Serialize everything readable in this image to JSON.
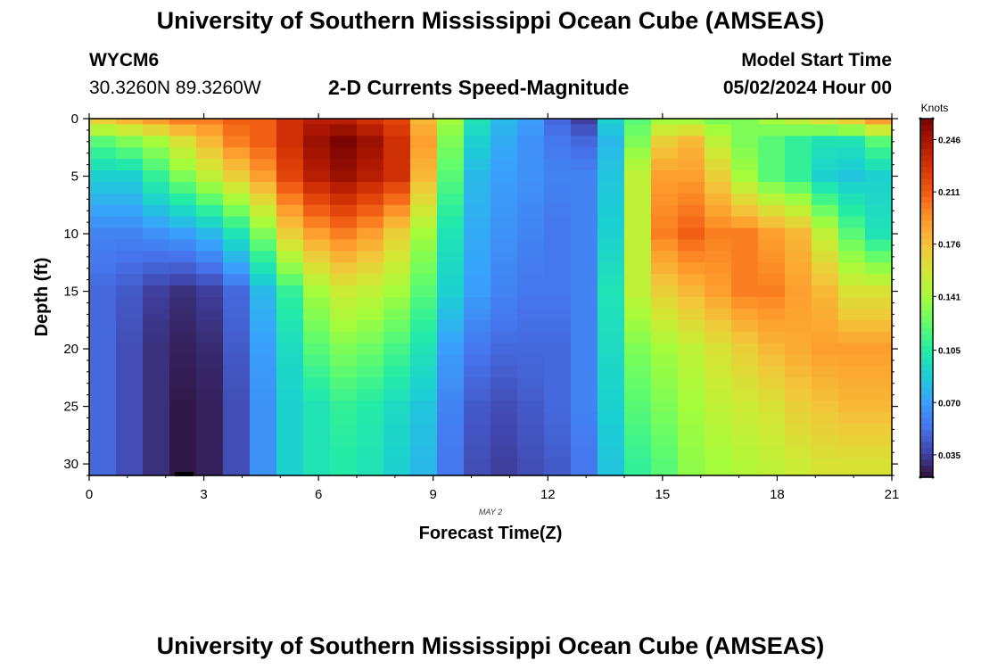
{
  "page": {
    "title_top": "University of Southern Mississippi Ocean Cube (AMSEAS)",
    "title_bottom": "University of Southern Mississippi Ocean Cube (AMSEAS)",
    "station": "WYCM6",
    "coords": "30.3260N  89.3260W",
    "model_start_label": "Model Start Time",
    "model_start_value": "05/02/2024 Hour 00",
    "plot_title": "2-D Currents Speed-Magnitude",
    "date_label": "MAY 2"
  },
  "colors": {
    "colormap": [
      "#30123b",
      "#4145ab",
      "#4675ed",
      "#39a2fc",
      "#1bcfd4",
      "#24eca6",
      "#61fc6c",
      "#a4fc3b",
      "#d1e834",
      "#f3c63a",
      "#fe9b2d",
      "#f36315",
      "#d93806",
      "#b11901",
      "#7a0402"
    ]
  },
  "chart_data": {
    "type": "heatmap",
    "title": "2-D Currents Speed-Magnitude",
    "xlabel": "Forecast Time(Z)",
    "ylabel": "Depth (ft)",
    "xlim": [
      0,
      21
    ],
    "ylim": [
      31,
      0
    ],
    "x_ticks": [
      0,
      3,
      6,
      9,
      12,
      15,
      18,
      21
    ],
    "y_ticks": [
      0,
      5,
      10,
      15,
      20,
      25,
      30
    ],
    "x_tick_labels": [
      "0",
      "3",
      "6",
      "9",
      "12",
      "15",
      "18",
      "21"
    ],
    "y_tick_labels": [
      "0",
      "5",
      "10",
      "15",
      "20",
      "25",
      "30"
    ],
    "colorbar": {
      "label": "Knots",
      "min": 0.02,
      "max": 0.26,
      "ticks": [
        0.035,
        0.07,
        0.105,
        0.141,
        0.176,
        0.211,
        0.246
      ],
      "tick_labels": [
        "0.035",
        "0.070",
        "0.105",
        "0.141",
        "0.176",
        "0.211",
        "0.246"
      ]
    },
    "times": [
      0.0,
      0.7,
      1.4,
      2.1,
      2.8,
      3.5,
      4.2,
      4.9,
      5.6,
      6.3,
      7.0,
      7.7,
      8.4,
      9.1,
      9.8,
      10.5,
      11.2,
      11.9,
      12.6,
      13.3,
      14.0,
      14.7,
      15.4,
      16.1,
      16.8,
      17.5,
      18.2,
      18.9,
      19.6,
      20.3
    ],
    "depths": [
      0,
      1,
      2,
      3,
      4,
      5,
      6,
      7,
      8,
      9,
      10,
      11,
      12,
      13,
      14,
      15,
      16,
      17,
      18,
      19,
      20,
      21,
      22,
      23,
      24,
      25,
      26,
      27,
      28,
      29,
      30
    ],
    "profiles": {
      "depth_knots": [
        0,
        2,
        5,
        10,
        15,
        20,
        25,
        30
      ],
      "times": [
        0.0,
        0.7,
        1.4,
        2.1,
        2.8,
        3.5,
        4.2,
        4.9,
        5.6,
        6.3,
        7.0,
        7.7,
        8.4,
        9.1,
        9.8,
        10.5,
        11.2,
        11.9,
        12.6,
        13.3,
        14.0,
        14.7,
        15.4,
        16.1,
        16.8,
        17.5,
        18.2,
        18.9,
        19.6,
        20.3
      ],
      "speed_knots": [
        [
          0.17,
          0.12,
          0.09,
          0.06,
          0.05,
          0.05,
          0.05,
          0.05
        ],
        [
          0.18,
          0.13,
          0.09,
          0.06,
          0.045,
          0.04,
          0.04,
          0.04
        ],
        [
          0.19,
          0.14,
          0.11,
          0.065,
          0.035,
          0.03,
          0.03,
          0.03
        ],
        [
          0.2,
          0.16,
          0.13,
          0.07,
          0.03,
          0.025,
          0.022,
          0.022
        ],
        [
          0.2,
          0.18,
          0.15,
          0.08,
          0.035,
          0.028,
          0.025,
          0.025
        ],
        [
          0.21,
          0.2,
          0.17,
          0.1,
          0.05,
          0.045,
          0.04,
          0.04
        ],
        [
          0.21,
          0.21,
          0.19,
          0.13,
          0.08,
          0.07,
          0.065,
          0.065
        ],
        [
          0.23,
          0.23,
          0.22,
          0.17,
          0.11,
          0.095,
          0.09,
          0.09
        ],
        [
          0.24,
          0.25,
          0.24,
          0.19,
          0.14,
          0.12,
          0.1,
          0.1
        ],
        [
          0.24,
          0.26,
          0.25,
          0.2,
          0.155,
          0.13,
          0.11,
          0.105
        ],
        [
          0.23,
          0.25,
          0.24,
          0.19,
          0.15,
          0.125,
          0.105,
          0.1
        ],
        [
          0.22,
          0.23,
          0.23,
          0.17,
          0.14,
          0.115,
          0.095,
          0.09
        ],
        [
          0.18,
          0.19,
          0.18,
          0.14,
          0.12,
          0.1,
          0.085,
          0.08
        ],
        [
          0.14,
          0.13,
          0.12,
          0.1,
          0.09,
          0.07,
          0.06,
          0.055
        ],
        [
          0.1,
          0.09,
          0.08,
          0.075,
          0.07,
          0.055,
          0.045,
          0.04
        ],
        [
          0.08,
          0.075,
          0.07,
          0.065,
          0.06,
          0.05,
          0.04,
          0.035
        ],
        [
          0.07,
          0.065,
          0.065,
          0.06,
          0.055,
          0.05,
          0.045,
          0.04
        ],
        [
          0.05,
          0.055,
          0.06,
          0.055,
          0.055,
          0.05,
          0.05,
          0.045
        ],
        [
          0.035,
          0.05,
          0.06,
          0.06,
          0.06,
          0.06,
          0.06,
          0.055
        ],
        [
          0.09,
          0.08,
          0.085,
          0.09,
          0.1,
          0.095,
          0.09,
          0.085
        ],
        [
          0.12,
          0.13,
          0.15,
          0.15,
          0.15,
          0.13,
          0.12,
          0.11
        ],
        [
          0.14,
          0.17,
          0.19,
          0.2,
          0.17,
          0.14,
          0.13,
          0.12
        ],
        [
          0.14,
          0.18,
          0.19,
          0.21,
          0.18,
          0.15,
          0.14,
          0.135
        ],
        [
          0.13,
          0.15,
          0.17,
          0.2,
          0.19,
          0.16,
          0.15,
          0.14
        ],
        [
          0.13,
          0.13,
          0.14,
          0.2,
          0.2,
          0.17,
          0.155,
          0.145
        ],
        [
          0.14,
          0.12,
          0.12,
          0.19,
          0.2,
          0.18,
          0.16,
          0.15
        ],
        [
          0.15,
          0.11,
          0.11,
          0.18,
          0.19,
          0.185,
          0.17,
          0.155
        ],
        [
          0.16,
          0.1,
          0.09,
          0.15,
          0.18,
          0.19,
          0.175,
          0.16
        ],
        [
          0.17,
          0.1,
          0.085,
          0.12,
          0.16,
          0.19,
          0.18,
          0.16
        ],
        [
          0.19,
          0.12,
          0.09,
          0.1,
          0.16,
          0.19,
          0.18,
          0.16
        ]
      ]
    }
  }
}
